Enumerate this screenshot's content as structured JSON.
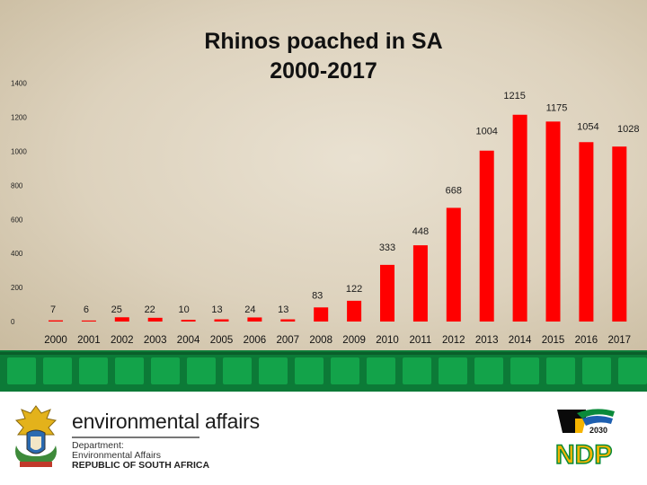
{
  "chart_data": {
    "type": "bar",
    "title": "Rhinos poached in SA\n2000-2017",
    "categories": [
      "2000",
      "2001",
      "2002",
      "2003",
      "2004",
      "2005",
      "2006",
      "2007",
      "2008",
      "2009",
      "2010",
      "2011",
      "2012",
      "2013",
      "2014",
      "2015",
      "2016",
      "2017"
    ],
    "values": [
      7,
      6,
      25,
      22,
      10,
      13,
      24,
      13,
      83,
      122,
      333,
      448,
      668,
      1004,
      1215,
      1175,
      1054,
      1028
    ],
    "data_labels": [
      "7",
      "6",
      "25",
      "22",
      "10",
      "13",
      "24",
      "13",
      "83",
      "122",
      "333",
      "448",
      "668",
      "1004",
      "1215",
      "1175",
      "1054",
      "1028"
    ],
    "y_ticks": [
      "0",
      "200",
      "400",
      "600",
      "800",
      "1000",
      "1200",
      "1400"
    ],
    "ylim": [
      0,
      1400
    ],
    "xlabel": "",
    "ylabel": "",
    "grid": false,
    "legend": "none",
    "bar_color": "#ff0000"
  },
  "footer": {
    "dept_title": "environmental affairs",
    "dept_line1": "Department:",
    "dept_line2": "Environmental Affairs",
    "dept_line3": "REPUBLIC OF SOUTH AFRICA",
    "ndp_text": "NDP",
    "ndp_year": "2030"
  },
  "colors": {
    "band_green": "#0c7a37",
    "tile_green": "#13a34a",
    "ndp_yellow": "#f5b400",
    "ndp_green": "#0a8a3a"
  }
}
